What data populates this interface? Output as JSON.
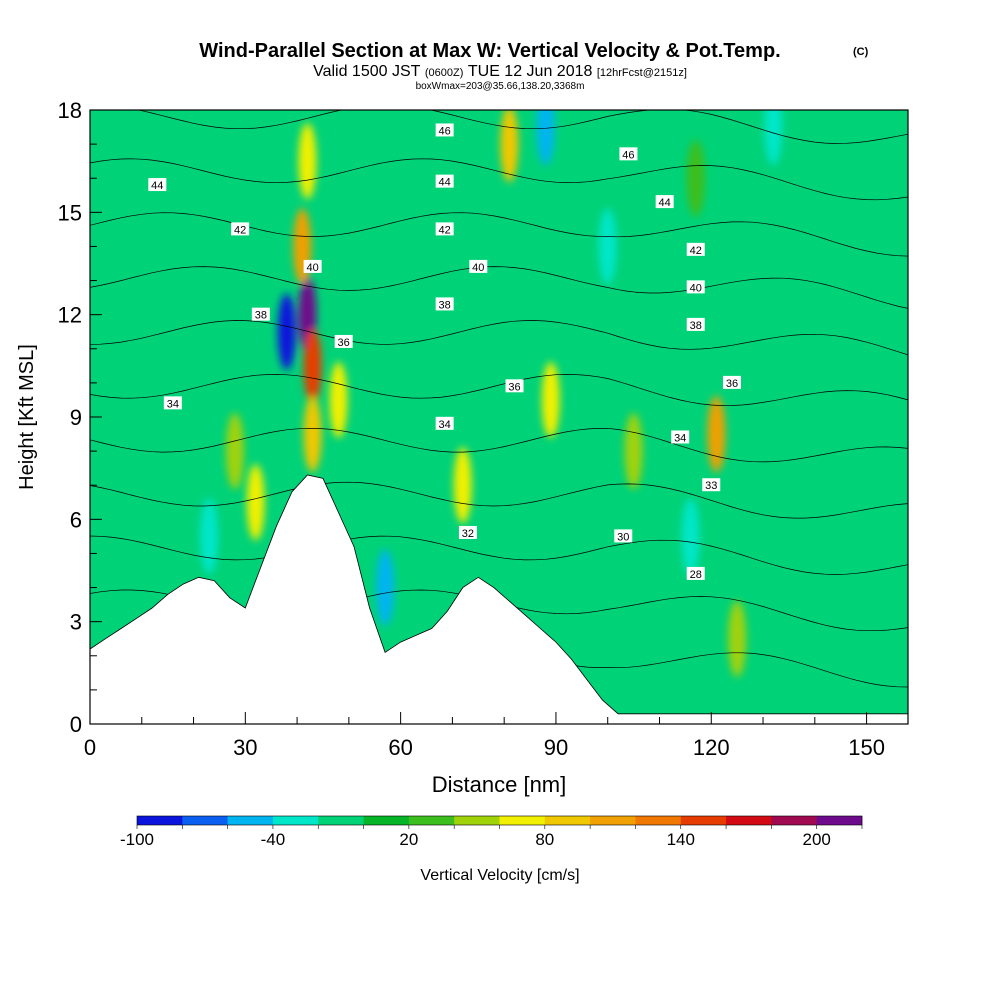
{
  "header": {
    "title": "Wind-Parallel Section at Max W: Vertical Velocity & Pot.Temp.",
    "copyright": "(C)",
    "valid_prefix": "Valid 1500 JST",
    "valid_utc": "(0600Z)",
    "valid_date": "TUE 12 Jun 2018",
    "forecast": "[12hrFcst@2151z]",
    "boxinfo": "boxWmax=203@35.66,138.20,3368m"
  },
  "chart_data": {
    "type": "heatmap",
    "xlabel": "Distance [nm]",
    "ylabel": "Height [Kft MSL]",
    "xlim": [
      0,
      158
    ],
    "ylim": [
      0,
      18
    ],
    "xticks": [
      0,
      30,
      60,
      90,
      120,
      150
    ],
    "yticks": [
      0,
      3,
      6,
      9,
      12,
      15,
      18
    ],
    "colorbar": {
      "label": "Vertical Velocity [cm/s]",
      "ticks": [
        -100,
        -40,
        20,
        80,
        140,
        200
      ],
      "levels": [
        -100,
        -80,
        -60,
        -40,
        -20,
        0,
        20,
        40,
        60,
        80,
        100,
        120,
        140,
        160,
        180,
        200,
        220
      ],
      "colors": [
        "#0a14dc",
        "#0a5ef0",
        "#00b4f0",
        "#00e6c8",
        "#00d278",
        "#06b428",
        "#3cbe1e",
        "#a0d20a",
        "#f0f000",
        "#f0c800",
        "#f0a000",
        "#f07800",
        "#e63c00",
        "#d20a14",
        "#a00a50",
        "#6e0a8c"
      ]
    },
    "terrain": [
      [
        0,
        2.2
      ],
      [
        3,
        2.5
      ],
      [
        6,
        2.8
      ],
      [
        9,
        3.1
      ],
      [
        12,
        3.4
      ],
      [
        15,
        3.8
      ],
      [
        18,
        4.1
      ],
      [
        21,
        4.3
      ],
      [
        24,
        4.2
      ],
      [
        27,
        3.7
      ],
      [
        30,
        3.4
      ],
      [
        33,
        4.6
      ],
      [
        36,
        5.8
      ],
      [
        39,
        6.8
      ],
      [
        42,
        7.3
      ],
      [
        45,
        7.2
      ],
      [
        48,
        6.2
      ],
      [
        51,
        5.2
      ],
      [
        54,
        3.4
      ],
      [
        57,
        2.1
      ],
      [
        60,
        2.4
      ],
      [
        63,
        2.6
      ],
      [
        66,
        2.8
      ],
      [
        69,
        3.3
      ],
      [
        72,
        4.0
      ],
      [
        75,
        4.3
      ],
      [
        78,
        4.0
      ],
      [
        81,
        3.6
      ],
      [
        84,
        3.2
      ],
      [
        87,
        2.8
      ],
      [
        90,
        2.4
      ],
      [
        93,
        1.9
      ],
      [
        96,
        1.3
      ],
      [
        99,
        0.7
      ],
      [
        102,
        0.3
      ],
      [
        105,
        0.3
      ],
      [
        158,
        0.3
      ]
    ],
    "velocity_cells": [
      {
        "x": 42,
        "y": 12,
        "v": 203
      },
      {
        "x": 43,
        "y": 10.5,
        "v": 150
      },
      {
        "x": 41,
        "y": 14,
        "v": 110
      },
      {
        "x": 42,
        "y": 16.5,
        "v": 70
      },
      {
        "x": 43,
        "y": 8.5,
        "v": 90
      },
      {
        "x": 38,
        "y": 11.5,
        "v": -90
      },
      {
        "x": 48,
        "y": 9.5,
        "v": 75
      },
      {
        "x": 32,
        "y": 6.5,
        "v": 70
      },
      {
        "x": 28,
        "y": 8,
        "v": 40
      },
      {
        "x": 23,
        "y": 5.5,
        "v": -30
      },
      {
        "x": 57,
        "y": 4,
        "v": -60
      },
      {
        "x": 72,
        "y": 7,
        "v": 60
      },
      {
        "x": 81,
        "y": 17,
        "v": 80
      },
      {
        "x": 88,
        "y": 17.5,
        "v": -60
      },
      {
        "x": 89,
        "y": 9.5,
        "v": 70
      },
      {
        "x": 105,
        "y": 8,
        "v": 50
      },
      {
        "x": 121,
        "y": 8.5,
        "v": 100
      },
      {
        "x": 116,
        "y": 5.5,
        "v": -40
      },
      {
        "x": 125,
        "y": 2.5,
        "v": 40
      },
      {
        "x": 100,
        "y": 14,
        "v": -30
      },
      {
        "x": 117,
        "y": 16,
        "v": 30
      },
      {
        "x": 132,
        "y": 17.5,
        "v": -30
      }
    ],
    "theta_contours": [
      28,
      30,
      32,
      33,
      34,
      36,
      38,
      40,
      42,
      44,
      46
    ],
    "contour_labels": [
      {
        "text": "46",
        "x": 68.5,
        "y": 17.4
      },
      {
        "text": "46",
        "x": 104,
        "y": 16.7
      },
      {
        "text": "44",
        "x": 13,
        "y": 15.8
      },
      {
        "text": "44",
        "x": 68.5,
        "y": 15.9
      },
      {
        "text": "44",
        "x": 111,
        "y": 15.3
      },
      {
        "text": "42",
        "x": 29,
        "y": 14.5
      },
      {
        "text": "42",
        "x": 68.5,
        "y": 14.5
      },
      {
        "text": "42",
        "x": 117,
        "y": 13.9
      },
      {
        "text": "40",
        "x": 43,
        "y": 13.4
      },
      {
        "text": "40",
        "x": 75,
        "y": 13.4
      },
      {
        "text": "40",
        "x": 117,
        "y": 12.8
      },
      {
        "text": "38",
        "x": 33,
        "y": 12.0
      },
      {
        "text": "38",
        "x": 68.5,
        "y": 12.3
      },
      {
        "text": "38",
        "x": 117,
        "y": 11.7
      },
      {
        "text": "36",
        "x": 49,
        "y": 11.2
      },
      {
        "text": "36",
        "x": 82,
        "y": 9.9
      },
      {
        "text": "36",
        "x": 124,
        "y": 10.0
      },
      {
        "text": "34",
        "x": 16,
        "y": 9.4
      },
      {
        "text": "34",
        "x": 68.5,
        "y": 8.8
      },
      {
        "text": "34",
        "x": 114,
        "y": 8.4
      },
      {
        "text": "33",
        "x": 120,
        "y": 7.0
      },
      {
        "text": "32",
        "x": 73,
        "y": 5.6
      },
      {
        "text": "30",
        "x": 103,
        "y": 5.5
      },
      {
        "text": "28",
        "x": 117,
        "y": 4.4
      }
    ]
  }
}
